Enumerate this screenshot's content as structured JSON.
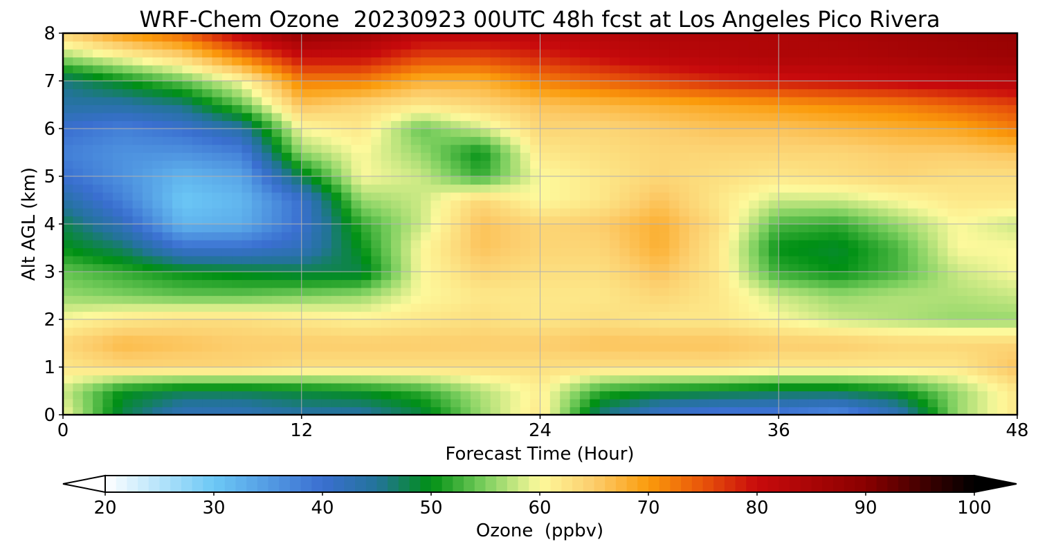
{
  "chart_data": {
    "type": "heatmap",
    "title": "WRF-Chem Ozone  20230923 00UTC 48h fcst at Los Angeles Pico Rivera",
    "xlabel": "Forecast Time (Hour)",
    "ylabel": "Alt AGL (km)",
    "xlim": [
      0,
      48
    ],
    "ylim": [
      0,
      8
    ],
    "x_ticks": [
      0,
      12,
      24,
      36,
      48
    ],
    "y_ticks": [
      0,
      1,
      2,
      3,
      4,
      5,
      6,
      7,
      8
    ],
    "grid": true,
    "x_hours": [
      0,
      3,
      6,
      9,
      12,
      15,
      18,
      21,
      24,
      27,
      30,
      33,
      36,
      39,
      42,
      45,
      48
    ],
    "y_km": [
      0,
      0.5,
      1,
      1.5,
      2,
      2.5,
      3,
      3.5,
      4,
      4.5,
      5,
      5.5,
      6,
      6.5,
      7,
      7.5,
      8
    ],
    "ozone_ppbv": [
      [
        60,
        48,
        42,
        42,
        44,
        44,
        48,
        56,
        62,
        46,
        40,
        38,
        38,
        36,
        42,
        56,
        62
      ],
      [
        58,
        50,
        48,
        48,
        49,
        50,
        52,
        57,
        61,
        52,
        50,
        49,
        48,
        48,
        50,
        56,
        62
      ],
      [
        62,
        64,
        64,
        64,
        63,
        63,
        63,
        63,
        63,
        63,
        63,
        63,
        62,
        62,
        62,
        62,
        66
      ],
      [
        64,
        67,
        66,
        65,
        65,
        65,
        65,
        65,
        65,
        66,
        66,
        66,
        65,
        65,
        64,
        64,
        64
      ],
      [
        60,
        62,
        63,
        63,
        62,
        61,
        62,
        63,
        62,
        63,
        62,
        62,
        60,
        58,
        57,
        56,
        56
      ],
      [
        56,
        55,
        54,
        54,
        55,
        56,
        60,
        62,
        62,
        62,
        64,
        62,
        58,
        56,
        57,
        57,
        58
      ],
      [
        54,
        52,
        50,
        49,
        48,
        48,
        60,
        64,
        63,
        63,
        66,
        62,
        52,
        50,
        53,
        58,
        60
      ],
      [
        50,
        47,
        40,
        40,
        42,
        50,
        60,
        66,
        64,
        64,
        68,
        62,
        50,
        49,
        53,
        60,
        60
      ],
      [
        48,
        42,
        32,
        33,
        40,
        52,
        58,
        66,
        64,
        65,
        68,
        63,
        53,
        52,
        56,
        60,
        58
      ],
      [
        44,
        38,
        30,
        32,
        40,
        56,
        58,
        64,
        60,
        62,
        66,
        62,
        58,
        58,
        60,
        62,
        62
      ],
      [
        40,
        36,
        32,
        34,
        48,
        60,
        58,
        52,
        60,
        62,
        64,
        63,
        62,
        63,
        64,
        63,
        63
      ],
      [
        38,
        36,
        36,
        38,
        56,
        60,
        56,
        50,
        62,
        63,
        64,
        64,
        64,
        64,
        65,
        65,
        66
      ],
      [
        40,
        38,
        40,
        44,
        60,
        62,
        54,
        58,
        64,
        64,
        65,
        66,
        66,
        67,
        68,
        69,
        72
      ],
      [
        44,
        44,
        46,
        54,
        66,
        64,
        62,
        64,
        66,
        67,
        68,
        69,
        70,
        71,
        72,
        74,
        76
      ],
      [
        46,
        50,
        54,
        60,
        72,
        72,
        68,
        68,
        72,
        74,
        76,
        78,
        79,
        80,
        81,
        82,
        83
      ],
      [
        56,
        60,
        64,
        72,
        80,
        80,
        76,
        76,
        78,
        80,
        82,
        83,
        84,
        84,
        85,
        86,
        87
      ],
      [
        64,
        70,
        74,
        82,
        88,
        86,
        82,
        82,
        82,
        83,
        84,
        84,
        84,
        85,
        86,
        87,
        88
      ]
    ],
    "colorbar": {
      "label": "Ozone  (ppbv)",
      "min": 20,
      "max": 100,
      "ticks": [
        20,
        30,
        40,
        50,
        60,
        70,
        80,
        90,
        100
      ],
      "extend": "both",
      "stops": [
        {
          "v": 20,
          "c": "#ffffff"
        },
        {
          "v": 30,
          "c": "#6cc8f6"
        },
        {
          "v": 40,
          "c": "#3a6fd0"
        },
        {
          "v": 45,
          "c": "#23739a"
        },
        {
          "v": 50,
          "c": "#009014"
        },
        {
          "v": 55,
          "c": "#7ed060"
        },
        {
          "v": 60,
          "c": "#fdf99c"
        },
        {
          "v": 65,
          "c": "#fccd6c"
        },
        {
          "v": 70,
          "c": "#fb9b0b"
        },
        {
          "v": 75,
          "c": "#e8540a"
        },
        {
          "v": 80,
          "c": "#c80a0c"
        },
        {
          "v": 90,
          "c": "#8a0000"
        },
        {
          "v": 100,
          "c": "#000000"
        }
      ]
    }
  }
}
